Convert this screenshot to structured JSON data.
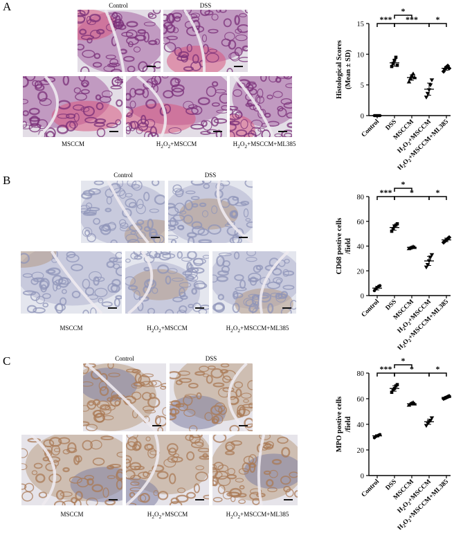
{
  "figure": {
    "panels": [
      {
        "letter": "A",
        "stain": "he",
        "images": {
          "top_labels": [
            "Control",
            "DSS"
          ],
          "bottom_labels": [
            "MSCCM",
            "H2O2+MSCCM",
            "H2O2+MSCCM+ML385"
          ]
        }
      },
      {
        "letter": "B",
        "stain": "ihc_light",
        "images": {
          "top_labels": [
            "Control",
            "DSS"
          ],
          "bottom_labels": [
            "MSCCM",
            "H2O2+MSCCM",
            "H2O2+MSCCM+ML385"
          ]
        }
      },
      {
        "letter": "C",
        "stain": "ihc_brown",
        "images": {
          "top_labels": [
            "Control",
            "DSS"
          ],
          "bottom_labels": [
            "MSCCM",
            "H2O2+MSCCM",
            "H2O2+MSCCM+ML385"
          ]
        }
      }
    ],
    "colors": {
      "he_purple": "#7a2f78",
      "he_pink": "#d9577f",
      "ihc_blue": "#8f94b8",
      "ihc_brown": "#a97955",
      "background": "#e9e9ef"
    }
  },
  "chart_data": [
    {
      "type": "scatter",
      "ylabel": "Histological Scores (Mean ± SD)",
      "ylabel_lines": [
        "Histological Scores",
        "(Mean ± SD)"
      ],
      "categories": [
        "Control",
        "DSS",
        "MSCCM",
        "H2O2+MSCCM",
        "H2O2+MSCCM+ML385"
      ],
      "ylim": [
        0,
        15
      ],
      "yticks": [
        0,
        5,
        10,
        15
      ],
      "markers": [
        "circle",
        "square",
        "triangle-up",
        "triangle-down",
        "diamond"
      ],
      "means": [
        0,
        8.6,
        6.2,
        4.3,
        7.7
      ],
      "points": [
        [
          0,
          0,
          0,
          0,
          0
        ],
        [
          8,
          8.5,
          9,
          9.5,
          8.2
        ],
        [
          5.5,
          6,
          6.5,
          6.8,
          6.2
        ],
        [
          3,
          3.6,
          4.2,
          5,
          5.8
        ],
        [
          7.2,
          7.6,
          7.9,
          8.1,
          7.7
        ]
      ],
      "significance": [
        {
          "from": 0,
          "to": 1,
          "label": "***",
          "level": 0
        },
        {
          "from": 1,
          "to": 2,
          "label": "*",
          "level": 1
        },
        {
          "from": 1,
          "to": 3,
          "label": "***",
          "level": 0
        },
        {
          "from": 3,
          "to": 4,
          "label": "*",
          "level": 0
        }
      ]
    },
    {
      "type": "scatter",
      "ylabel": "CD68 postive cells /field",
      "ylabel_lines": [
        "CD68 postive cells",
        "/field"
      ],
      "categories": [
        "Control",
        "DSS",
        "MSCCM",
        "H2O2+MSCCM",
        "H2O2+MSCCM+ML385"
      ],
      "ylim": [
        0,
        80
      ],
      "yticks": [
        0,
        20,
        40,
        60,
        80
      ],
      "markers": [
        "circle",
        "square",
        "triangle-up",
        "triangle-down",
        "diamond"
      ],
      "means": [
        6,
        55,
        39,
        28,
        45
      ],
      "points": [
        [
          4,
          5.5,
          6.5,
          7.5,
          8
        ],
        [
          52,
          54,
          56,
          57,
          58
        ],
        [
          38,
          38.5,
          39,
          39.5,
          39
        ],
        [
          23,
          25,
          28,
          31,
          33
        ],
        [
          43,
          44,
          45,
          46,
          47
        ]
      ],
      "significance": [
        {
          "from": 0,
          "to": 1,
          "label": "***",
          "level": 0
        },
        {
          "from": 1,
          "to": 2,
          "label": "*",
          "level": 1
        },
        {
          "from": 1,
          "to": 3,
          "label": "*",
          "level": 0
        },
        {
          "from": 3,
          "to": 4,
          "label": "*",
          "level": 0
        }
      ]
    },
    {
      "type": "scatter",
      "ylabel": "MPO postive cells /field",
      "ylabel_lines": [
        "MPO postive cells",
        "/field"
      ],
      "categories": [
        "Control",
        "DSS",
        "MSCCM",
        "H2O2+MSCCM",
        "H2O2+MSCCM+ML385"
      ],
      "ylim": [
        0,
        80
      ],
      "yticks": [
        0,
        20,
        40,
        60,
        80
      ],
      "markers": [
        "circle",
        "square",
        "triangle-up",
        "triangle-down",
        "diamond"
      ],
      "means": [
        31,
        68,
        56,
        42,
        61
      ],
      "points": [
        [
          29.5,
          30.5,
          31,
          31.5,
          32
        ],
        [
          65,
          67,
          68,
          70,
          71
        ],
        [
          55,
          56,
          56.5,
          57,
          56
        ],
        [
          39,
          41,
          42,
          43,
          45
        ],
        [
          60,
          60.5,
          61,
          61.5,
          62
        ]
      ],
      "significance": [
        {
          "from": 0,
          "to": 1,
          "label": "***",
          "level": 0
        },
        {
          "from": 1,
          "to": 2,
          "label": "*",
          "level": 1
        },
        {
          "from": 1,
          "to": 3,
          "label": "*",
          "level": 0
        },
        {
          "from": 3,
          "to": 4,
          "label": "*",
          "level": 0
        }
      ]
    }
  ]
}
